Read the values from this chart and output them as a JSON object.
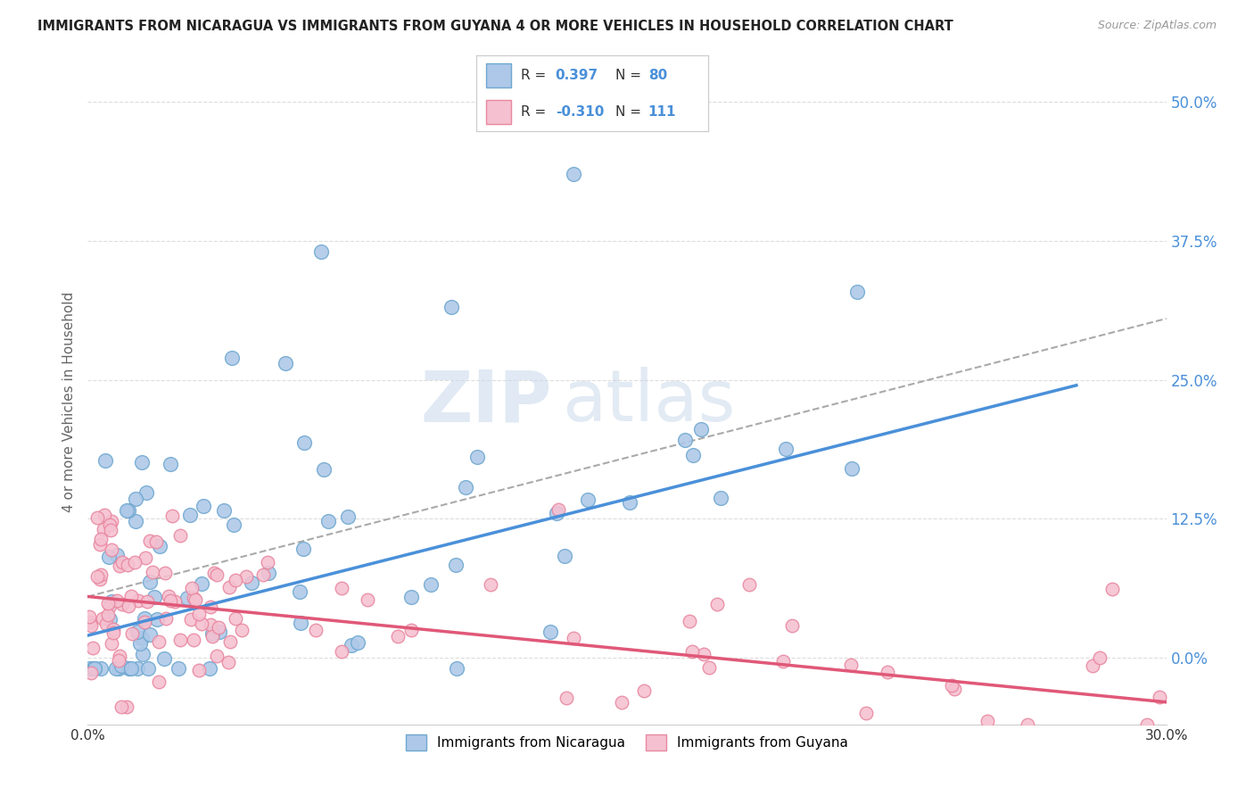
{
  "title": "IMMIGRANTS FROM NICARAGUA VS IMMIGRANTS FROM GUYANA 4 OR MORE VEHICLES IN HOUSEHOLD CORRELATION CHART",
  "source": "Source: ZipAtlas.com",
  "ylabel": "4 or more Vehicles in Household",
  "xlim": [
    0.0,
    0.3
  ],
  "ylim": [
    -0.06,
    0.52
  ],
  "yticks": [
    0.0,
    0.125,
    0.25,
    0.375,
    0.5
  ],
  "ytick_labels": [
    "0.0%",
    "12.5%",
    "25.0%",
    "37.5%",
    "50.0%"
  ],
  "blue_color": "#adc8e8",
  "blue_edge": "#6fa8d0",
  "blue_line": "#4a90d9",
  "pink_color": "#f5c0d0",
  "pink_edge": "#e888a0",
  "pink_line": "#e05878",
  "dashed_line_color": "#aaaaaa",
  "legend_R_blue": "0.397",
  "legend_N_blue": "80",
  "legend_R_pink": "-0.310",
  "legend_N_pink": "111",
  "legend_label_blue": "Immigrants from Nicaragua",
  "legend_label_pink": "Immigrants from Guyana",
  "watermark_zip": "ZIP",
  "watermark_atlas": "atlas",
  "background_color": "#ffffff",
  "grid_color": "#dddddd",
  "blue_trend_x0": 0.0,
  "blue_trend_y0": 0.02,
  "blue_trend_x1": 0.275,
  "blue_trend_y1": 0.245,
  "dash_trend_x0": 0.0,
  "dash_trend_y0": 0.055,
  "dash_trend_x1": 0.3,
  "dash_trend_y1": 0.305,
  "pink_trend_x0": 0.0,
  "pink_trend_y0": 0.055,
  "pink_trend_x1": 0.3,
  "pink_trend_y1": -0.04
}
